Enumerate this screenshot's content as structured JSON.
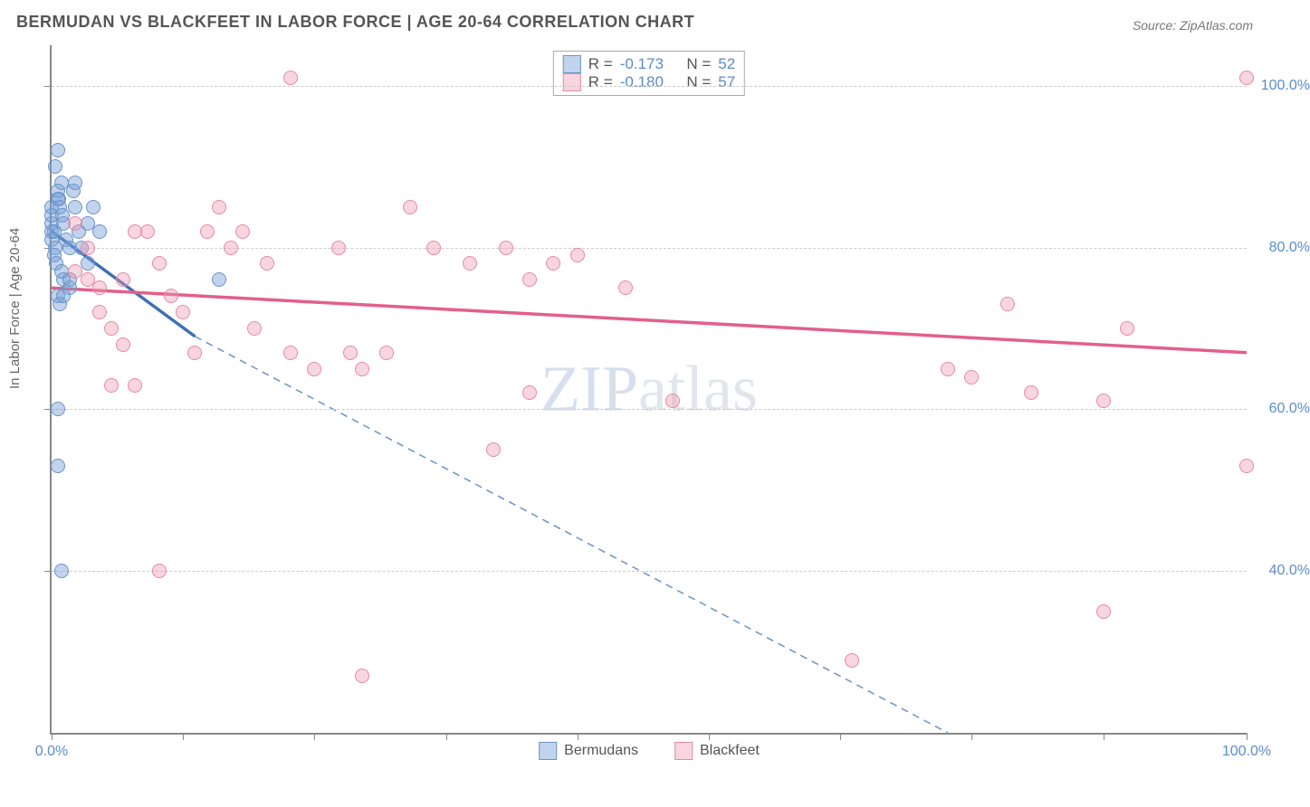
{
  "title": "BERMUDAN VS BLACKFEET IN LABOR FORCE | AGE 20-64 CORRELATION CHART",
  "source": "Source: ZipAtlas.com",
  "y_axis_label": "In Labor Force | Age 20-64",
  "watermark_a": "ZIP",
  "watermark_b": "atlas",
  "chart": {
    "type": "scatter",
    "xlim": [
      0,
      100
    ],
    "ylim": [
      20,
      105
    ],
    "x_ticks": [
      0,
      11,
      22,
      33,
      44,
      55,
      66,
      77,
      88,
      100
    ],
    "x_tick_labels": {
      "0": "0.0%",
      "100": "100.0%"
    },
    "y_gridlines": [
      40,
      60,
      80,
      100
    ],
    "y_tick_labels": {
      "40": "40.0%",
      "60": "60.0%",
      "80": "80.0%",
      "100": "100.0%"
    },
    "background_color": "#ffffff",
    "grid_color": "#cccccc",
    "axis_color": "#888888",
    "tick_label_color": "#5b8cc9",
    "marker_radius": 7,
    "marker_stroke_width": 1.5
  },
  "series": [
    {
      "name": "Bermudans",
      "fill": "rgba(120,160,215,0.45)",
      "stroke": "#6a93c8",
      "line_color": "#3f6fb5",
      "dashed_color": "#6a93c8",
      "trend_solid": {
        "x1": 0,
        "y1": 82,
        "x2": 12,
        "y2": 69
      },
      "trend_dashed": {
        "x1": 12,
        "y1": 69,
        "x2": 75,
        "y2": 20
      },
      "R": "-0.173",
      "N": "52",
      "points": [
        [
          0,
          81
        ],
        [
          0,
          82
        ],
        [
          0,
          83
        ],
        [
          0,
          84
        ],
        [
          0,
          85
        ],
        [
          0.5,
          86
        ],
        [
          0.5,
          87
        ],
        [
          0.8,
          88
        ],
        [
          0.3,
          80
        ],
        [
          0.2,
          79
        ],
        [
          0.4,
          78
        ],
        [
          0.6,
          86
        ],
        [
          0.7,
          85
        ],
        [
          0.9,
          84
        ],
        [
          1.0,
          83
        ],
        [
          0.2,
          82
        ],
        [
          1.2,
          81
        ],
        [
          1.5,
          80
        ],
        [
          0.3,
          90
        ],
        [
          0.5,
          92
        ],
        [
          1.8,
          87
        ],
        [
          2.0,
          85
        ],
        [
          1.0,
          76
        ],
        [
          1.5,
          75
        ],
        [
          2.3,
          82
        ],
        [
          0.8,
          77
        ],
        [
          0.5,
          74
        ],
        [
          0.7,
          73
        ],
        [
          1.0,
          74
        ],
        [
          1.5,
          76
        ],
        [
          2.5,
          80
        ],
        [
          14,
          76
        ],
        [
          0.5,
          60
        ],
        [
          0.5,
          53
        ],
        [
          0.8,
          40
        ],
        [
          3,
          83
        ],
        [
          3.5,
          85
        ],
        [
          4,
          82
        ],
        [
          3,
          78
        ],
        [
          2,
          88
        ]
      ]
    },
    {
      "name": "Blackfeet",
      "fill": "rgba(240,150,175,0.40)",
      "stroke": "#e48aa4",
      "line_color": "#e35f8a",
      "trend_solid": {
        "x1": 0,
        "y1": 75,
        "x2": 100,
        "y2": 67
      },
      "R": "-0.180",
      "N": "57",
      "points": [
        [
          2,
          77
        ],
        [
          3,
          76
        ],
        [
          4,
          72
        ],
        [
          5,
          70
        ],
        [
          6,
          68
        ],
        [
          7,
          82
        ],
        [
          8,
          82
        ],
        [
          9,
          78
        ],
        [
          10,
          74
        ],
        [
          11,
          72
        ],
        [
          5,
          63
        ],
        [
          7,
          63
        ],
        [
          12,
          67
        ],
        [
          13,
          82
        ],
        [
          14,
          85
        ],
        [
          15,
          80
        ],
        [
          16,
          82
        ],
        [
          17,
          70
        ],
        [
          18,
          78
        ],
        [
          20,
          101
        ],
        [
          20,
          67
        ],
        [
          22,
          65
        ],
        [
          24,
          80
        ],
        [
          25,
          67
        ],
        [
          26,
          65
        ],
        [
          28,
          67
        ],
        [
          30,
          85
        ],
        [
          32,
          80
        ],
        [
          35,
          78
        ],
        [
          37,
          55
        ],
        [
          38,
          80
        ],
        [
          40,
          76
        ],
        [
          42,
          78
        ],
        [
          40,
          62
        ],
        [
          44,
          79
        ],
        [
          48,
          75
        ],
        [
          52,
          61
        ],
        [
          9,
          40
        ],
        [
          26,
          27
        ],
        [
          67,
          29
        ],
        [
          75,
          65
        ],
        [
          77,
          64
        ],
        [
          82,
          62
        ],
        [
          80,
          73
        ],
        [
          88,
          61
        ],
        [
          90,
          70
        ],
        [
          88,
          35
        ],
        [
          100,
          53
        ],
        [
          100,
          101
        ],
        [
          2,
          83
        ],
        [
          4,
          75
        ],
        [
          6,
          76
        ],
        [
          3,
          80
        ]
      ]
    }
  ],
  "stats_legend": {
    "rows": [
      {
        "swatch_fill": "rgba(120,160,215,0.45)",
        "swatch_stroke": "#6a93c8",
        "R_label": "R =",
        "R": "-0.173",
        "N_label": "N =",
        "N": "52"
      },
      {
        "swatch_fill": "rgba(240,150,175,0.40)",
        "swatch_stroke": "#e48aa4",
        "R_label": "R =",
        "R": "-0.180",
        "N_label": "N =",
        "N": "57"
      }
    ]
  },
  "bottom_legend": [
    {
      "swatch_fill": "rgba(120,160,215,0.45)",
      "swatch_stroke": "#6a93c8",
      "label": "Bermudans"
    },
    {
      "swatch_fill": "rgba(240,150,175,0.40)",
      "swatch_stroke": "#e48aa4",
      "label": "Blackfeet"
    }
  ]
}
